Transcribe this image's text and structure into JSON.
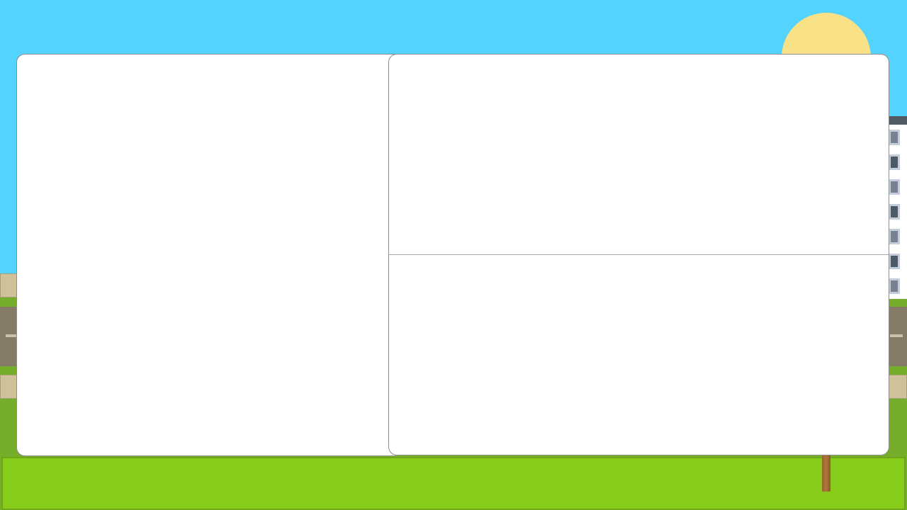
{
  "scene": {
    "colors": {
      "sky": "#55d3ff",
      "sun": "#f9e187",
      "grass": "#76ad2a",
      "sidewalk": "#cfc29a",
      "road": "#857c68",
      "lawn": "#87cb1b",
      "building_roof": "#4f5a63",
      "window_light": "#76828f",
      "window_dark": "#4c5a66"
    },
    "icons": {
      "sun": "sun-icon",
      "tree": "tree-trunk-icon",
      "building": "building-icon"
    },
    "building_windows": [
      "light",
      "dark",
      "light",
      "dark",
      "light",
      "dark",
      "light"
    ]
  },
  "panels": {
    "left": {
      "title": "",
      "content": ""
    },
    "right_top": {
      "title": "",
      "content": ""
    },
    "right_bottom": {
      "title": "",
      "content": ""
    }
  }
}
